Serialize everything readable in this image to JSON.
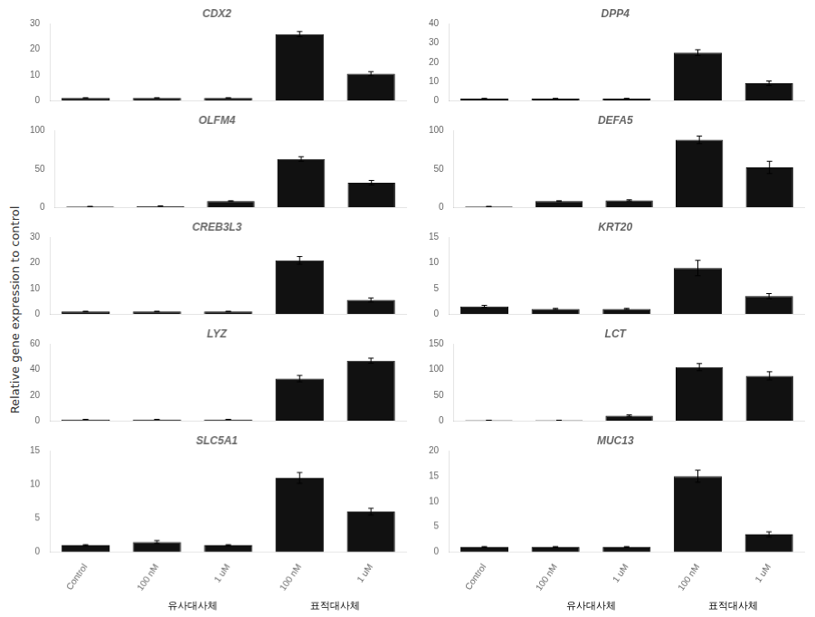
{
  "chart_data": [
    {
      "type": "bar",
      "title": "CDX2",
      "ylabel": "Relative gene expression to control",
      "categories": [
        "Control",
        "100 nM",
        "1 uM",
        "100 nM",
        "1 uM"
      ],
      "values": [
        1.0,
        1.0,
        1.0,
        26.0,
        10.5
      ],
      "errors": [
        0.1,
        0.1,
        0.1,
        1.0,
        0.8
      ],
      "color": "#111111",
      "ylim": [
        0,
        30
      ],
      "yticks": [
        0,
        10,
        20,
        30
      ],
      "grid": false,
      "tick_labels": "y"
    },
    {
      "type": "bar",
      "title": "DPP4",
      "categories": [
        "Control",
        "100 nM",
        "1 uM",
        "100 nM",
        "1 uM"
      ],
      "values": [
        1.0,
        1.0,
        1.0,
        25.0,
        9.0
      ],
      "errors": [
        0.1,
        0.1,
        0.1,
        1.5,
        1.2
      ],
      "color": "#111111",
      "ylim": [
        0,
        40
      ],
      "yticks": [
        0,
        10,
        20,
        30,
        40
      ],
      "grid": false,
      "tick_labels": "y"
    },
    {
      "type": "bar",
      "title": "OLFM4",
      "categories": [
        "Control",
        "100 nM",
        "1 uM",
        "100 nM",
        "1 uM"
      ],
      "values": [
        1.0,
        1.5,
        8.0,
        63.0,
        32.0
      ],
      "errors": [
        0.1,
        0.2,
        0.5,
        3.0,
        3.0
      ],
      "color": "#111111",
      "ylim": [
        0,
        100
      ],
      "yticks": [
        0,
        50,
        100
      ],
      "grid": false,
      "tick_labels": "y"
    },
    {
      "type": "bar",
      "title": "DEFA5",
      "categories": [
        "Control",
        "100 nM",
        "1 uM",
        "100 nM",
        "1 uM"
      ],
      "values": [
        1.0,
        8.0,
        9.0,
        88.0,
        52.0
      ],
      "errors": [
        0.1,
        0.5,
        0.8,
        5.0,
        8.0
      ],
      "color": "#111111",
      "ylim": [
        0,
        100
      ],
      "yticks": [
        0,
        50,
        100
      ],
      "grid": false,
      "tick_labels": "y"
    },
    {
      "type": "bar",
      "title": "CREB3L3",
      "categories": [
        "Control",
        "100 nM",
        "1 uM",
        "100 nM",
        "1 uM"
      ],
      "values": [
        1.0,
        1.0,
        1.0,
        21.0,
        5.5
      ],
      "errors": [
        0.1,
        0.1,
        0.1,
        1.5,
        0.8
      ],
      "color": "#111111",
      "ylim": [
        0,
        30
      ],
      "yticks": [
        0,
        10,
        20,
        30
      ],
      "grid": false,
      "tick_labels": "y"
    },
    {
      "type": "bar",
      "title": "KRT20",
      "categories": [
        "Control",
        "100 nM",
        "1 uM",
        "100 nM",
        "1 uM"
      ],
      "values": [
        1.5,
        1.0,
        1.0,
        9.0,
        3.5
      ],
      "errors": [
        0.2,
        0.1,
        0.1,
        1.5,
        0.5
      ],
      "color": "#111111",
      "ylim": [
        0,
        15
      ],
      "yticks": [
        0,
        5,
        10,
        15
      ],
      "grid": false,
      "tick_labels": "y"
    },
    {
      "type": "bar",
      "title": "LYZ",
      "categories": [
        "Control",
        "100 nM",
        "1 uM",
        "100 nM",
        "1 uM"
      ],
      "values": [
        1.0,
        1.0,
        1.0,
        33.0,
        47.0
      ],
      "errors": [
        0.1,
        0.1,
        0.1,
        2.5,
        2.0
      ],
      "color": "#111111",
      "ylim": [
        0,
        60
      ],
      "yticks": [
        0,
        20,
        40,
        60
      ],
      "grid": false,
      "tick_labels": "y"
    },
    {
      "type": "bar",
      "title": "LCT",
      "categories": [
        "Control",
        "100 nM",
        "1 uM",
        "100 nM",
        "1 uM"
      ],
      "values": [
        1.0,
        1.0,
        10.0,
        105.0,
        88.0
      ],
      "errors": [
        0.1,
        0.1,
        1.5,
        7.0,
        8.0
      ],
      "color": "#111111",
      "ylim": [
        0,
        150
      ],
      "yticks": [
        0,
        50,
        100,
        150
      ],
      "grid": false,
      "tick_labels": "y"
    },
    {
      "type": "bar",
      "title": "SLC5A1",
      "categories": [
        "Control",
        "100 nM",
        "1 uM",
        "100 nM",
        "1 uM"
      ],
      "values": [
        1.0,
        1.5,
        1.0,
        11.0,
        6.0
      ],
      "errors": [
        0.1,
        0.2,
        0.1,
        0.8,
        0.5
      ],
      "color": "#111111",
      "ylim": [
        0,
        15
      ],
      "yticks": [
        0,
        5,
        10,
        15
      ],
      "grid": false,
      "annotations": [
        "유사대사체",
        "표적대사체"
      ]
    },
    {
      "type": "bar",
      "title": "MUC13",
      "categories": [
        "Control",
        "100 nM",
        "1 uM",
        "100 nM",
        "1 uM"
      ],
      "values": [
        1.0,
        1.0,
        1.0,
        15.0,
        3.5
      ],
      "errors": [
        0.1,
        0.1,
        0.1,
        1.2,
        0.5
      ],
      "color": "#111111",
      "ylim": [
        0,
        20
      ],
      "yticks": [
        0,
        5,
        10,
        15,
        20
      ],
      "grid": false,
      "annotations": [
        "유사대사체",
        "표적대사체"
      ]
    }
  ]
}
